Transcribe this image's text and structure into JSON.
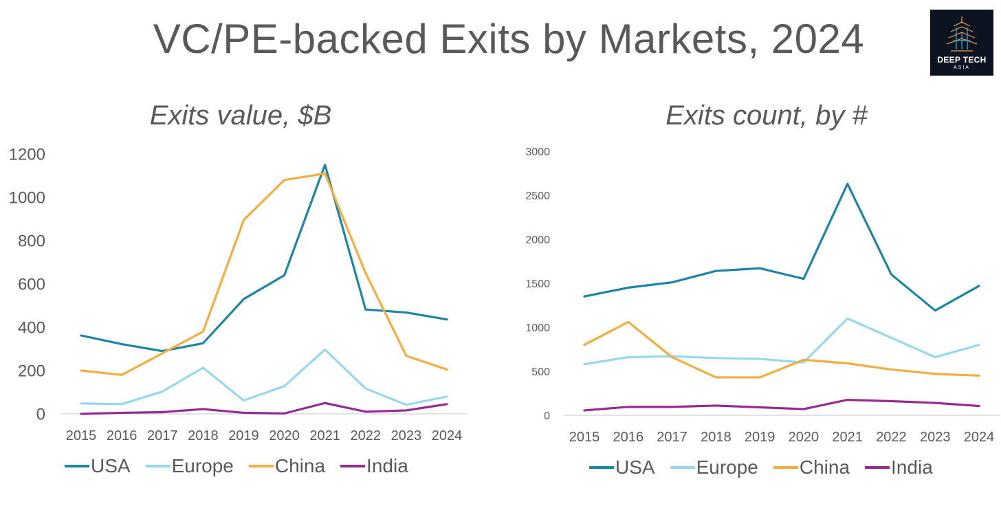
{
  "title": "VC/PE-backed Exits by Markets, 2024",
  "logo": {
    "line1": "DEEP TECH",
    "line2": "ASIA"
  },
  "colors": {
    "USA": "#1b85a6",
    "Europe": "#96d8f0",
    "China": "#f5ad42",
    "India": "#952a92"
  },
  "legend": [
    "USA",
    "Europe",
    "China",
    "India"
  ],
  "chart_data": [
    {
      "type": "line",
      "title": "Exits value, $B",
      "categories": [
        "2015",
        "2016",
        "2017",
        "2018",
        "2019",
        "2020",
        "2021",
        "2022",
        "2023",
        "2024"
      ],
      "ylim": [
        0,
        1200
      ],
      "yticks": [
        0,
        200,
        400,
        600,
        800,
        1000,
        1200
      ],
      "series": [
        {
          "name": "USA",
          "values": [
            362,
            322,
            290,
            326,
            530,
            640,
            1150,
            482,
            468,
            436
          ]
        },
        {
          "name": "Europe",
          "values": [
            48,
            45,
            103,
            213,
            62,
            128,
            297,
            117,
            42,
            80
          ]
        },
        {
          "name": "China",
          "values": [
            200,
            180,
            280,
            380,
            895,
            1080,
            1110,
            650,
            268,
            205
          ]
        },
        {
          "name": "India",
          "values": [
            0,
            5,
            8,
            22,
            5,
            2,
            50,
            10,
            16,
            45
          ]
        }
      ]
    },
    {
      "type": "line",
      "title": "Exits count, by #",
      "categories": [
        "2015",
        "2016",
        "2017",
        "2018",
        "2019",
        "2020",
        "2021",
        "2022",
        "2023",
        "2024"
      ],
      "ylim": [
        0,
        3000
      ],
      "yticks": [
        0,
        500,
        1000,
        1500,
        2000,
        2500,
        3000
      ],
      "series": [
        {
          "name": "USA",
          "values": [
            1350,
            1450,
            1510,
            1640,
            1670,
            1550,
            2630,
            1600,
            1190,
            1470
          ]
        },
        {
          "name": "Europe",
          "values": [
            580,
            660,
            670,
            650,
            640,
            600,
            1100,
            880,
            660,
            800
          ]
        },
        {
          "name": "China",
          "values": [
            800,
            1060,
            660,
            430,
            430,
            630,
            590,
            520,
            470,
            450
          ]
        },
        {
          "name": "India",
          "values": [
            55,
            95,
            95,
            110,
            90,
            70,
            175,
            160,
            140,
            105
          ]
        }
      ]
    }
  ]
}
